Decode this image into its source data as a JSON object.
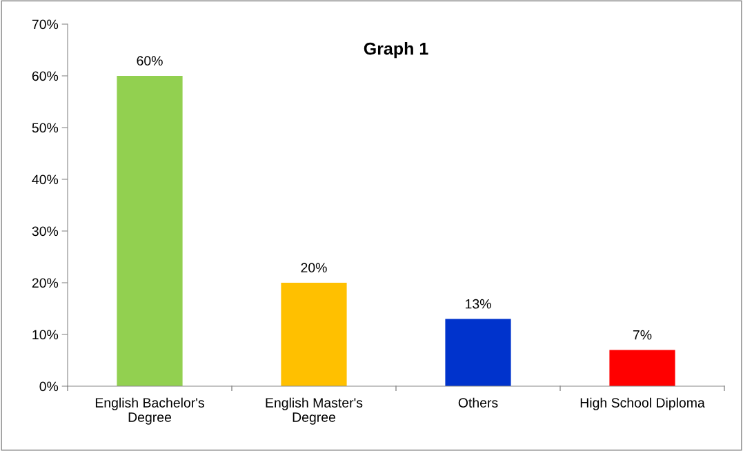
{
  "chart_data": {
    "type": "bar",
    "title": "Graph 1",
    "categories": [
      "English Bachelor's\nDegree",
      "English Master's\nDegree",
      "Others",
      "High School Diploma"
    ],
    "values": [
      60,
      20,
      13,
      7
    ],
    "colors": [
      "#92d050",
      "#ffc000",
      "#0033cc",
      "#ff0000"
    ],
    "value_labels": [
      "60%",
      "20%",
      "13%",
      "7%"
    ],
    "ylim": [
      0,
      70
    ],
    "yticks": [
      {
        "value": 0,
        "label": "0%"
      },
      {
        "value": 10,
        "label": "10%"
      },
      {
        "value": 20,
        "label": "20%"
      },
      {
        "value": 30,
        "label": "30%"
      },
      {
        "value": 40,
        "label": "40%"
      },
      {
        "value": 50,
        "label": "50%"
      },
      {
        "value": 60,
        "label": "60%"
      },
      {
        "value": 70,
        "label": "70%"
      }
    ],
    "grid": false,
    "legend": false
  }
}
